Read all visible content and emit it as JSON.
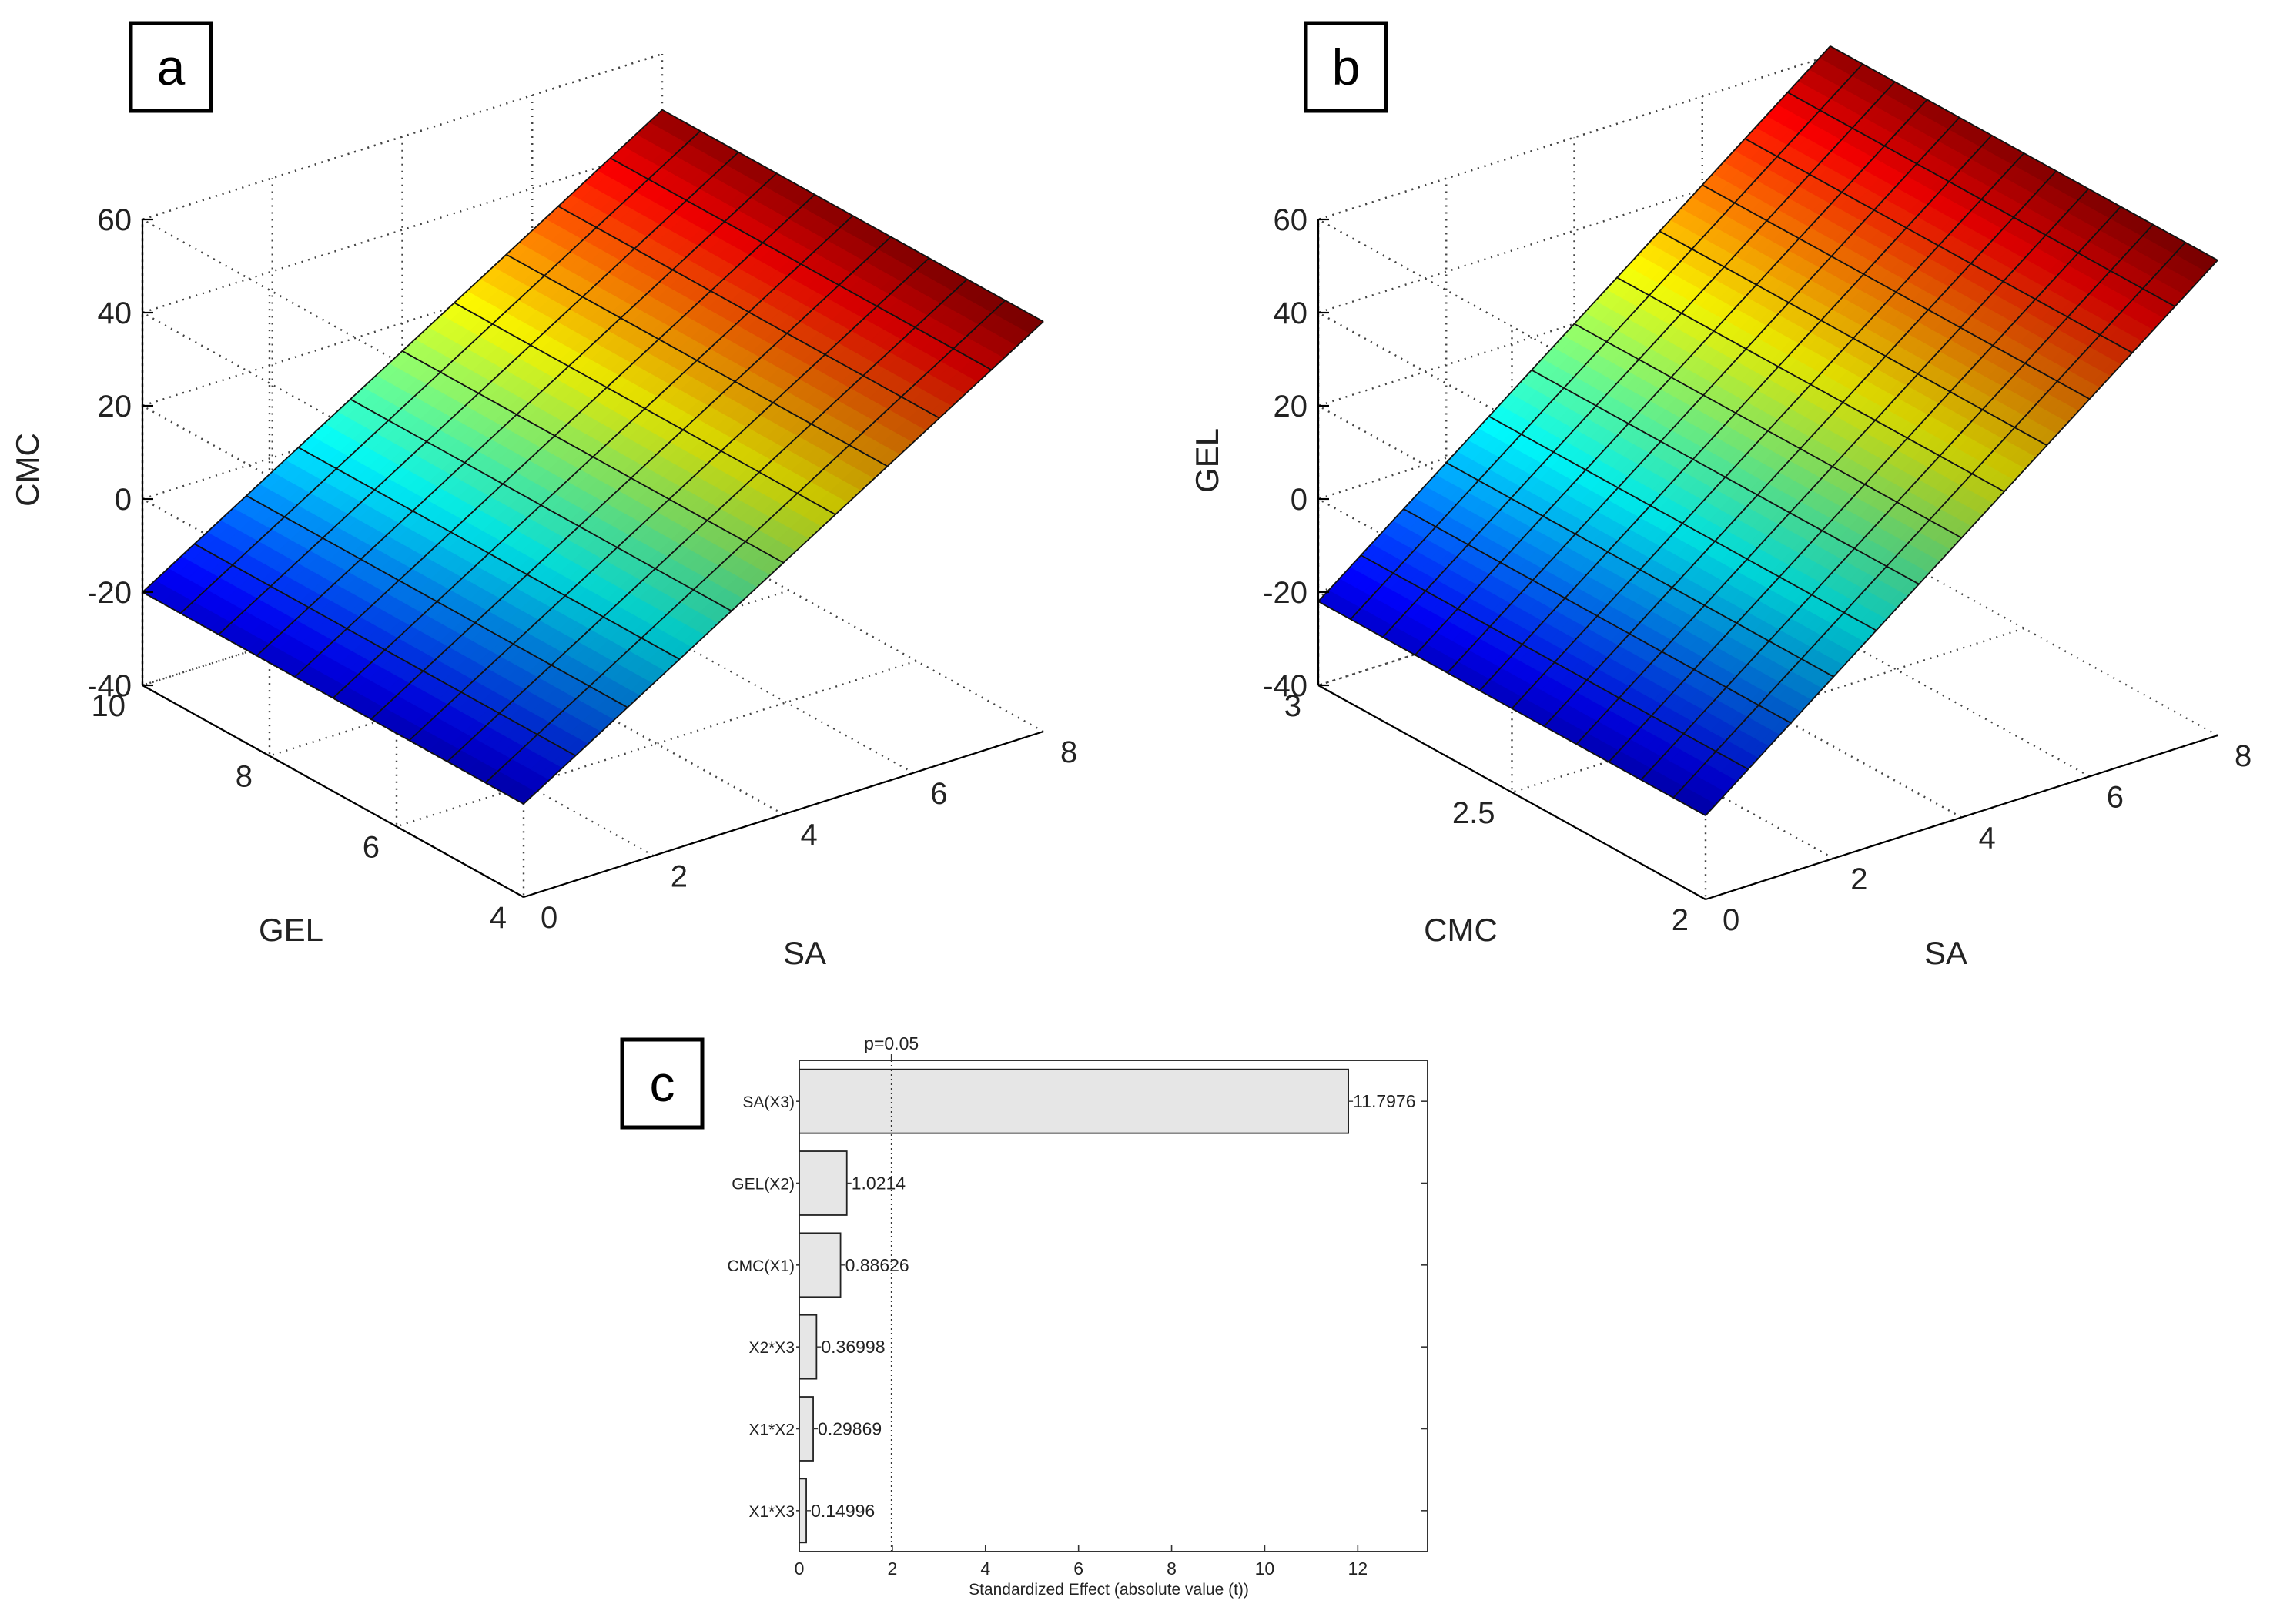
{
  "chart_data": [
    {
      "panel": "a",
      "type": "surface",
      "title": "",
      "xlabel": "SA",
      "ylabel": "GEL",
      "zlabel": "CMC",
      "xlim": [
        0,
        8
      ],
      "ylim": [
        4,
        10
      ],
      "zlim": [
        -40,
        60
      ],
      "xticks": [
        "0",
        "2",
        "4",
        "6",
        "8"
      ],
      "yticks": [
        "4",
        "6",
        "8",
        "10"
      ],
      "zticks": [
        "-40",
        "-20",
        "0",
        "20",
        "40",
        "60"
      ],
      "grid": true,
      "colormap": "jet",
      "surface": {
        "x_range": [
          0,
          8
        ],
        "y_range": [
          4,
          10
        ],
        "z_at_x0": -20,
        "z_at_x8": 48,
        "grid_divisions": [
          10,
          10
        ]
      }
    },
    {
      "panel": "b",
      "type": "surface",
      "title": "",
      "xlabel": "SA",
      "ylabel": "CMC",
      "zlabel": "GEL",
      "xlim": [
        0,
        8
      ],
      "ylim": [
        2,
        3
      ],
      "zlim": [
        -40,
        60
      ],
      "xticks": [
        "0",
        "2",
        "4",
        "6",
        "8"
      ],
      "yticks": [
        "2",
        "2.5",
        "3"
      ],
      "zticks": [
        "-40",
        "-20",
        "0",
        "20",
        "40",
        "60"
      ],
      "grid": true,
      "colormap": "jet",
      "surface": {
        "x_range": [
          0,
          8
        ],
        "y_range": [
          2,
          3
        ],
        "z_at_x0": -22,
        "z_at_x8": 62,
        "grid_divisions": [
          12,
          12
        ]
      }
    },
    {
      "panel": "c",
      "type": "bar",
      "orientation": "horizontal",
      "title": "",
      "xlabel": "Standardized Effect (absolute value (t))",
      "ylabel": "",
      "categories": [
        "SA(X3)",
        "GEL(X2)",
        "CMC(X1)",
        "X2*X3",
        "X1*X2",
        "X1*X3"
      ],
      "values": [
        11.7976,
        1.0214,
        0.88626,
        0.36998,
        0.29869,
        0.14996
      ],
      "value_labels": [
        "11.7976",
        "1.0214",
        "0.88626",
        "0.36998",
        "0.29869",
        "0.14996"
      ],
      "xlim": [
        0,
        13.5
      ],
      "xticks": [
        "0",
        "2",
        "4",
        "6",
        "8",
        "10",
        "12"
      ],
      "reference_line": {
        "x": 1.98,
        "label": "p=0.05"
      },
      "bar_color": "#e6e6e6"
    }
  ],
  "panels": {
    "a_label": "a",
    "b_label": "b",
    "c_label": "c"
  }
}
